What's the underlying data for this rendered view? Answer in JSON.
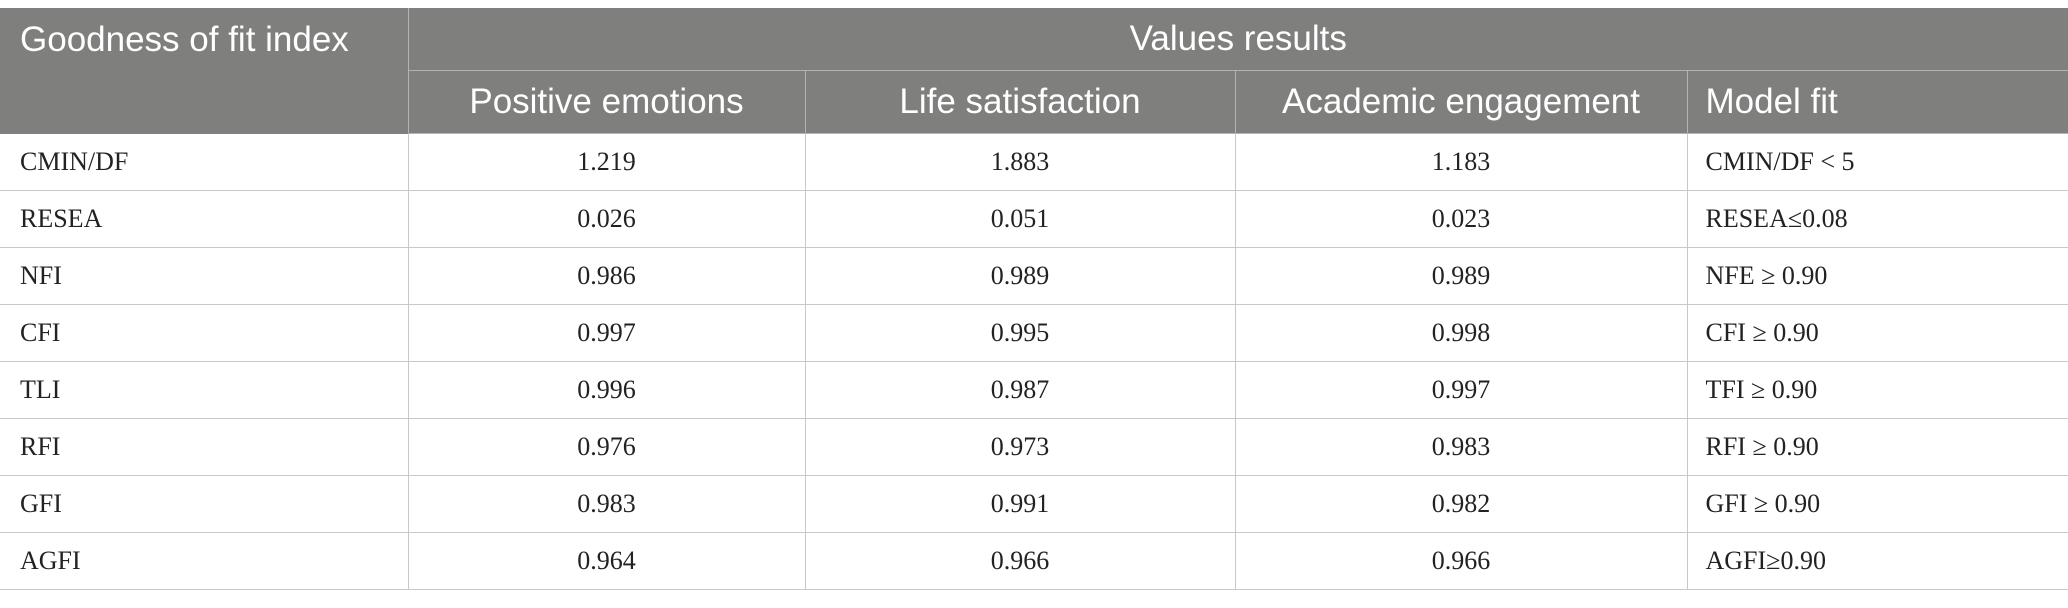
{
  "table": {
    "header": {
      "index_label": "Goodness of fit index",
      "group_label": "Values results",
      "columns": [
        "Positive emotions",
        "Life satisfaction",
        "Academic engagement",
        "Model fit"
      ]
    },
    "rows": [
      {
        "index": "CMIN/DF",
        "positive_emotions": "1.219",
        "life_satisfaction": "1.883",
        "academic_engagement": "1.183",
        "model_fit": "CMIN/DF < 5"
      },
      {
        "index": "RESEA",
        "positive_emotions": "0.026",
        "life_satisfaction": "0.051",
        "academic_engagement": "0.023",
        "model_fit": "RESEA≤0.08"
      },
      {
        "index": "NFI",
        "positive_emotions": "0.986",
        "life_satisfaction": "0.989",
        "academic_engagement": "0.989",
        "model_fit": "NFE ≥ 0.90"
      },
      {
        "index": "CFI",
        "positive_emotions": "0.997",
        "life_satisfaction": "0.995",
        "academic_engagement": "0.998",
        "model_fit": "CFI ≥ 0.90"
      },
      {
        "index": "TLI",
        "positive_emotions": "0.996",
        "life_satisfaction": "0.987",
        "academic_engagement": "0.997",
        "model_fit": "TFI ≥ 0.90"
      },
      {
        "index": "RFI",
        "positive_emotions": "0.976",
        "life_satisfaction": "0.973",
        "academic_engagement": "0.983",
        "model_fit": "RFI ≥ 0.90"
      },
      {
        "index": "GFI",
        "positive_emotions": "0.983",
        "life_satisfaction": "0.991",
        "academic_engagement": "0.982",
        "model_fit": "GFI ≥ 0.90"
      },
      {
        "index": "AGFI",
        "positive_emotions": "0.964",
        "life_satisfaction": "0.966",
        "academic_engagement": "0.966",
        "model_fit": "AGFI≥0.90"
      }
    ]
  },
  "colors": {
    "header_background": "#7f7f7e",
    "header_text": "#ffffff",
    "grid_line": "#c8c8c8"
  }
}
